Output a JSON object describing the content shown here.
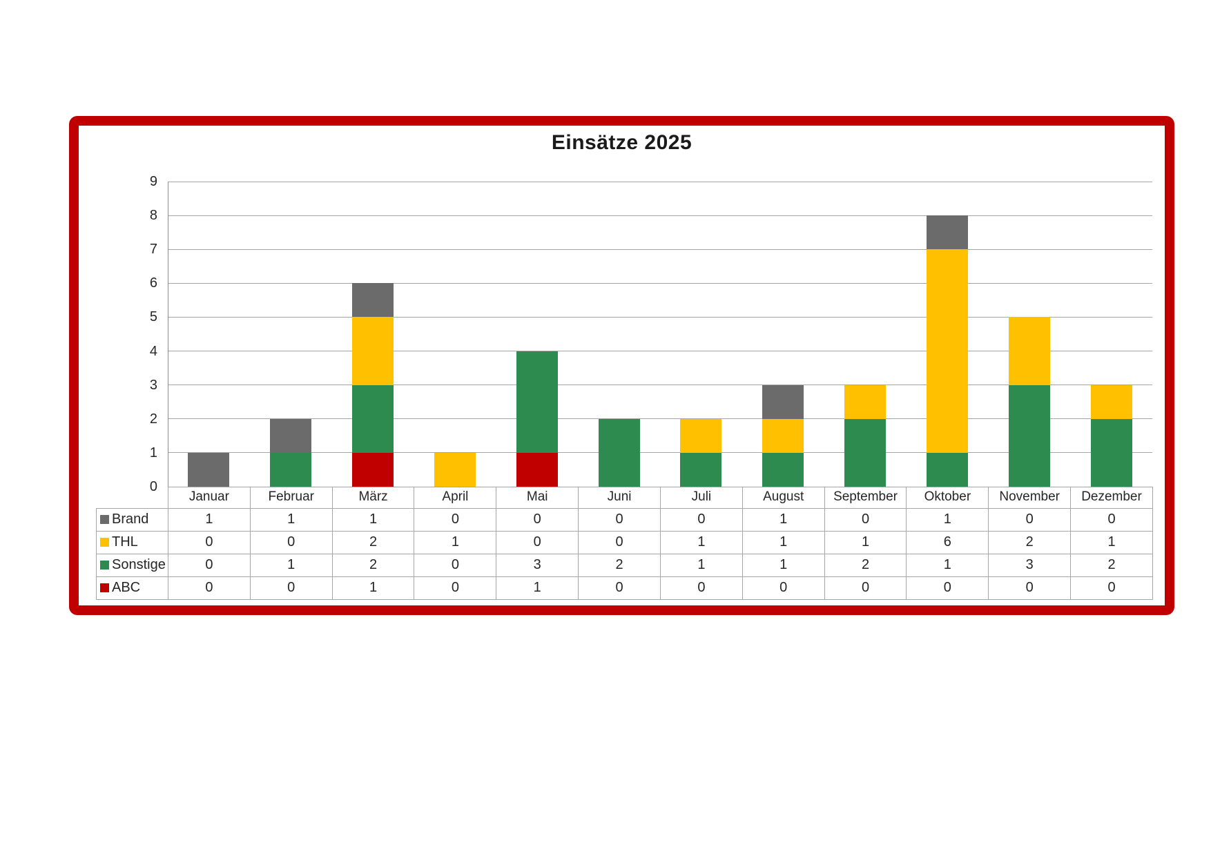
{
  "panel": {
    "border_color": "#C00000",
    "background_color": "#FFFFFF"
  },
  "chart_data": {
    "type": "bar",
    "stacked": true,
    "title": "Einsätze 2025",
    "xlabel": "",
    "ylabel": "",
    "ylim": [
      0,
      9
    ],
    "yticks": [
      0,
      1,
      2,
      3,
      4,
      5,
      6,
      7,
      8,
      9
    ],
    "grid": "horizontal",
    "legend_position": "data-table-left",
    "data_table_shown": true,
    "categories": [
      "Januar",
      "Februar",
      "März",
      "April",
      "Mai",
      "Juni",
      "Juli",
      "August",
      "September",
      "Oktober",
      "November",
      "Dezember"
    ],
    "series": [
      {
        "name": "Brand",
        "color": "#6B6B6B",
        "values": [
          1,
          1,
          1,
          0,
          0,
          0,
          0,
          1,
          0,
          1,
          0,
          0
        ]
      },
      {
        "name": "THL",
        "color": "#FFC000",
        "values": [
          0,
          0,
          2,
          1,
          0,
          0,
          1,
          1,
          1,
          6,
          2,
          1
        ]
      },
      {
        "name": "Sonstige",
        "color": "#2E8B50",
        "values": [
          0,
          1,
          2,
          0,
          3,
          2,
          1,
          1,
          2,
          1,
          3,
          2
        ]
      },
      {
        "name": "ABC",
        "color": "#C00000",
        "values": [
          0,
          0,
          1,
          0,
          1,
          0,
          0,
          0,
          0,
          0,
          0,
          0
        ]
      }
    ],
    "stack_order_bottom_to_top": [
      "ABC",
      "Sonstige",
      "THL",
      "Brand"
    ],
    "totals_per_month": [
      1,
      2,
      6,
      1,
      4,
      2,
      2,
      3,
      3,
      8,
      5,
      3
    ]
  }
}
